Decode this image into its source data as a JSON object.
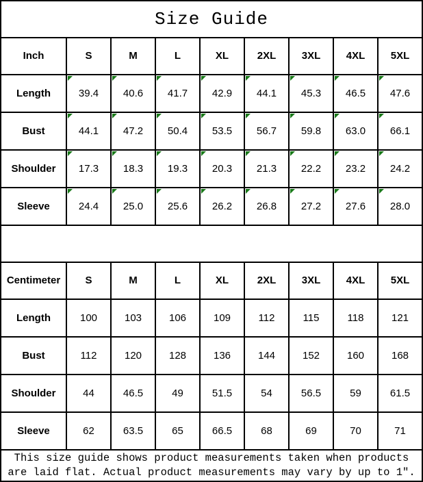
{
  "title": "Size Guide",
  "sizes": [
    "S",
    "M",
    "L",
    "XL",
    "2XL",
    "3XL",
    "4XL",
    "5XL"
  ],
  "tables": [
    {
      "unit": "Inch",
      "has_cell_markers": true,
      "rows": [
        {
          "label": "Length",
          "values": [
            "39.4",
            "40.6",
            "41.7",
            "42.9",
            "44.1",
            "45.3",
            "46.5",
            "47.6"
          ]
        },
        {
          "label": "Bust",
          "values": [
            "44.1",
            "47.2",
            "50.4",
            "53.5",
            "56.7",
            "59.8",
            "63.0",
            "66.1"
          ]
        },
        {
          "label": "Shoulder",
          "values": [
            "17.3",
            "18.3",
            "19.3",
            "20.3",
            "21.3",
            "22.2",
            "23.2",
            "24.2"
          ]
        },
        {
          "label": "Sleeve",
          "values": [
            "24.4",
            "25.0",
            "25.6",
            "26.2",
            "26.8",
            "27.2",
            "27.6",
            "28.0"
          ]
        }
      ]
    },
    {
      "unit": "Centimeter",
      "has_cell_markers": false,
      "rows": [
        {
          "label": "Length",
          "values": [
            "100",
            "103",
            "106",
            "109",
            "112",
            "115",
            "118",
            "121"
          ]
        },
        {
          "label": "Bust",
          "values": [
            "112",
            "120",
            "128",
            "136",
            "144",
            "152",
            "160",
            "168"
          ]
        },
        {
          "label": "Shoulder",
          "values": [
            "44",
            "46.5",
            "49",
            "51.5",
            "54",
            "56.5",
            "59",
            "61.5"
          ]
        },
        {
          "label": "Sleeve",
          "values": [
            "62",
            "63.5",
            "65",
            "66.5",
            "68",
            "69",
            "70",
            "71"
          ]
        }
      ]
    }
  ],
  "footer": {
    "line1": "This size guide shows product measurements taken when products",
    "line2": "are laid flat. Actual product measurements may vary by up to 1″."
  },
  "colors": {
    "border": "#000000",
    "marker_green": "#1a7a1a",
    "background": "#ffffff",
    "text": "#000000"
  }
}
